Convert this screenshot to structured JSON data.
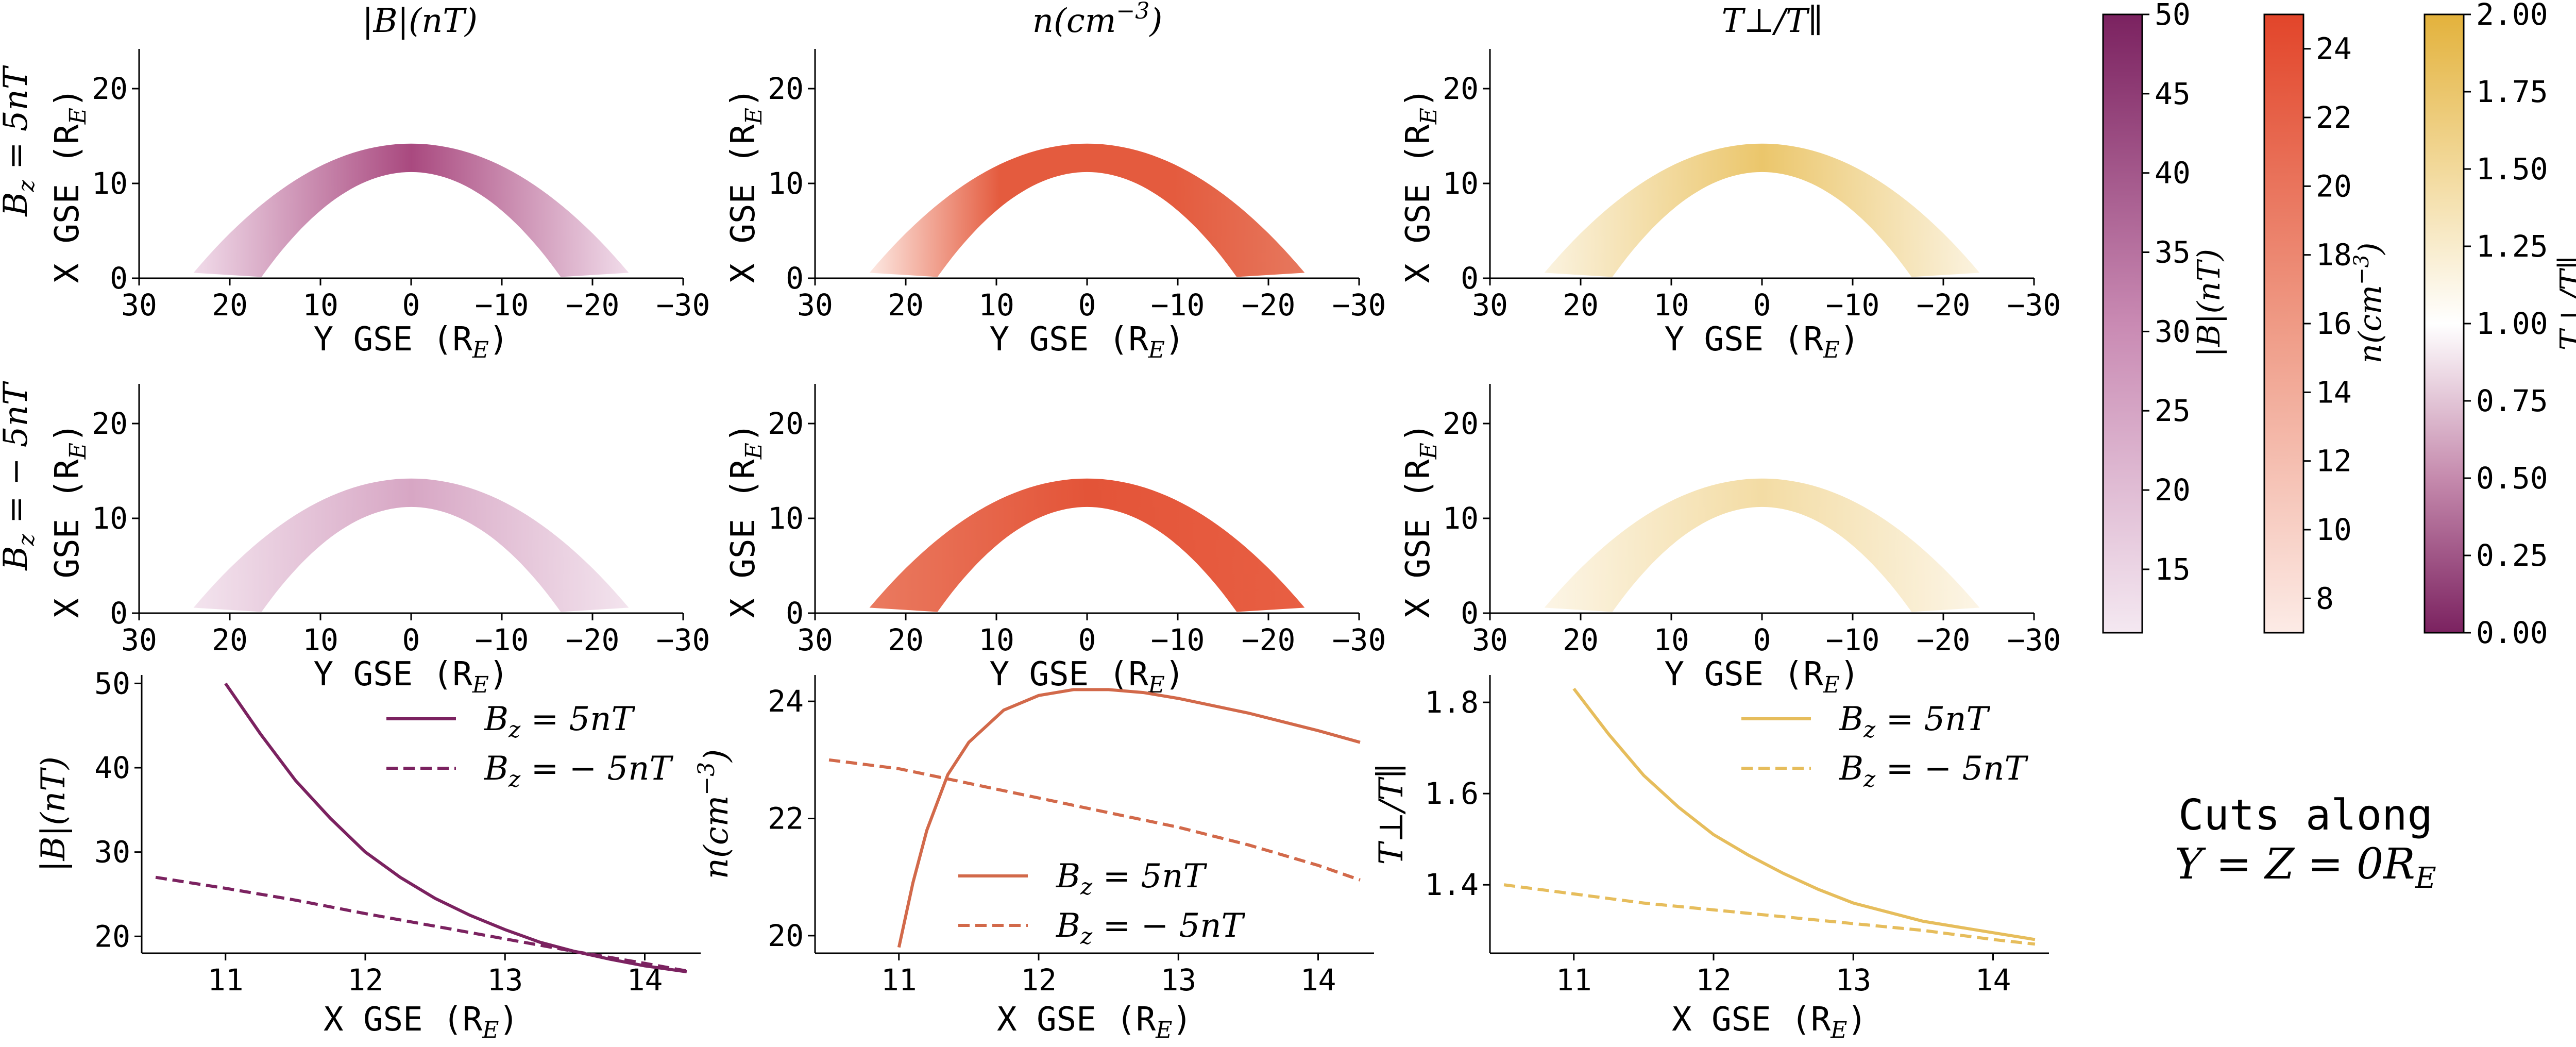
{
  "figure": {
    "cuts_text_line1": "Cuts along",
    "cuts_text_line2": "Y = Z = 0R",
    "cuts_text_line2_sub": "E"
  },
  "maps": {
    "col_titles": [
      {
        "text": "|B|(nT)",
        "sup": ""
      },
      {
        "text": "n(cm",
        "sup": "−3",
        "tail": ")"
      },
      {
        "text": "T⊥/T∥",
        "sup": ""
      }
    ],
    "row_labels": [
      {
        "main": "B",
        "sub": "z",
        "rest": " = 5nT"
      },
      {
        "main": "B",
        "sub": "z",
        "rest": " = − 5nT"
      }
    ],
    "xlabel": "Y GSE (R",
    "xlabel_sub": "E",
    "xlabel_tail": ")",
    "ylabel": "X GSE (R",
    "ylabel_sub": "E",
    "ylabel_tail": ")",
    "xticks": [
      "30",
      "20",
      "10",
      "0",
      "−10",
      "−20",
      "−30"
    ],
    "yticks": [
      "0",
      "10",
      "20"
    ]
  },
  "colorbars": [
    {
      "name": "|B|(nT)",
      "min": 11,
      "max": 50,
      "ticks": [
        "15",
        "20",
        "25",
        "30",
        "35",
        "40",
        "45",
        "50"
      ],
      "tick_values": [
        15,
        20,
        25,
        30,
        35,
        40,
        45,
        50
      ],
      "color_low": "#f4e8f1",
      "color_high": "#7b2260"
    },
    {
      "name": "n(cm⁻³)",
      "min": 7,
      "max": 25,
      "ticks": [
        "8",
        "10",
        "12",
        "14",
        "16",
        "18",
        "20",
        "22",
        "24"
      ],
      "tick_values": [
        8,
        10,
        12,
        14,
        16,
        18,
        20,
        22,
        24
      ],
      "color_low": "#fcebe6",
      "color_high": "#e2452a"
    },
    {
      "name": "T⊥/T∥",
      "min": 0,
      "max": 2,
      "ticks": [
        "0.00",
        "0.25",
        "0.50",
        "0.75",
        "1.00",
        "1.25",
        "1.50",
        "1.75",
        "2.00"
      ],
      "tick_values": [
        0,
        0.25,
        0.5,
        0.75,
        1,
        1.25,
        1.5,
        1.75,
        2
      ],
      "color_low": "#7b2260",
      "color_mid": "#ffffff",
      "color_high": "#e3b23c"
    }
  ],
  "chart_data": [
    {
      "type": "line",
      "xlabel": "X GSE (R_E)",
      "ylabel": "|B|(nT)",
      "xlim": [
        10.4,
        14.4
      ],
      "ylim": [
        18,
        51
      ],
      "xticks": [
        11,
        12,
        13,
        14
      ],
      "yticks": [
        20,
        30,
        40,
        50
      ],
      "color": "#7b2260",
      "legend_position": "top-right",
      "series": [
        {
          "name": "B_z = 5nT",
          "style": "solid",
          "x": [
            11.0,
            11.25,
            11.5,
            11.75,
            12.0,
            12.25,
            12.5,
            12.75,
            13.0,
            13.25,
            13.5,
            13.75,
            14.0,
            14.3
          ],
          "y": [
            50.0,
            44.0,
            38.5,
            34.0,
            30.0,
            27.0,
            24.5,
            22.5,
            20.8,
            19.3,
            18.2,
            17.3,
            16.5,
            15.8
          ]
        },
        {
          "name": "B_z = − 5nT",
          "style": "dashed",
          "x": [
            10.5,
            11.0,
            11.5,
            12.0,
            12.5,
            13.0,
            13.5,
            14.0,
            14.3
          ],
          "y": [
            27.0,
            25.7,
            24.3,
            22.7,
            21.2,
            19.7,
            18.2,
            16.8,
            15.9
          ]
        }
      ]
    },
    {
      "type": "line",
      "xlabel": "X GSE (R_E)",
      "ylabel": "n(cm^-3)",
      "xlim": [
        10.4,
        14.4
      ],
      "ylim": [
        19.7,
        24.45
      ],
      "xticks": [
        11,
        12,
        13,
        14
      ],
      "yticks": [
        20,
        22,
        24
      ],
      "color": "#d2694a",
      "legend_position": "bottom-center",
      "series": [
        {
          "name": "B_z = 5nT",
          "style": "solid",
          "x": [
            11.0,
            11.1,
            11.2,
            11.35,
            11.5,
            11.75,
            12.0,
            12.25,
            12.5,
            12.75,
            13.0,
            13.5,
            14.0,
            14.3
          ],
          "y": [
            19.8,
            20.9,
            21.8,
            22.75,
            23.3,
            23.85,
            24.1,
            24.2,
            24.2,
            24.15,
            24.05,
            23.8,
            23.5,
            23.3
          ]
        },
        {
          "name": "B_z = − 5nT",
          "style": "dashed",
          "x": [
            10.5,
            11.0,
            11.5,
            12.0,
            12.5,
            13.0,
            13.5,
            14.0,
            14.3
          ],
          "y": [
            23.0,
            22.85,
            22.6,
            22.35,
            22.1,
            21.85,
            21.55,
            21.2,
            20.95
          ]
        }
      ]
    },
    {
      "type": "line",
      "xlabel": "X GSE (R_E)",
      "ylabel": "T⊥/T∥",
      "xlim": [
        10.4,
        14.4
      ],
      "ylim": [
        1.25,
        1.86
      ],
      "xticks": [
        11,
        12,
        13,
        14
      ],
      "yticks": [
        1.4,
        1.6,
        1.8
      ],
      "color": "#e6bd5c",
      "legend_position": "top-right",
      "series": [
        {
          "name": "B_z = 5nT",
          "style": "solid",
          "x": [
            11.0,
            11.25,
            11.5,
            11.75,
            12.0,
            12.25,
            12.5,
            12.75,
            13.0,
            13.5,
            14.0,
            14.3
          ],
          "y": [
            1.83,
            1.73,
            1.64,
            1.57,
            1.51,
            1.465,
            1.425,
            1.39,
            1.36,
            1.32,
            1.295,
            1.28
          ]
        },
        {
          "name": "B_z = − 5nT",
          "style": "dashed",
          "x": [
            10.5,
            11.0,
            11.5,
            12.0,
            12.5,
            13.0,
            13.5,
            14.0,
            14.3
          ],
          "y": [
            1.4,
            1.38,
            1.36,
            1.345,
            1.33,
            1.315,
            1.3,
            1.28,
            1.27
          ]
        }
      ]
    }
  ]
}
